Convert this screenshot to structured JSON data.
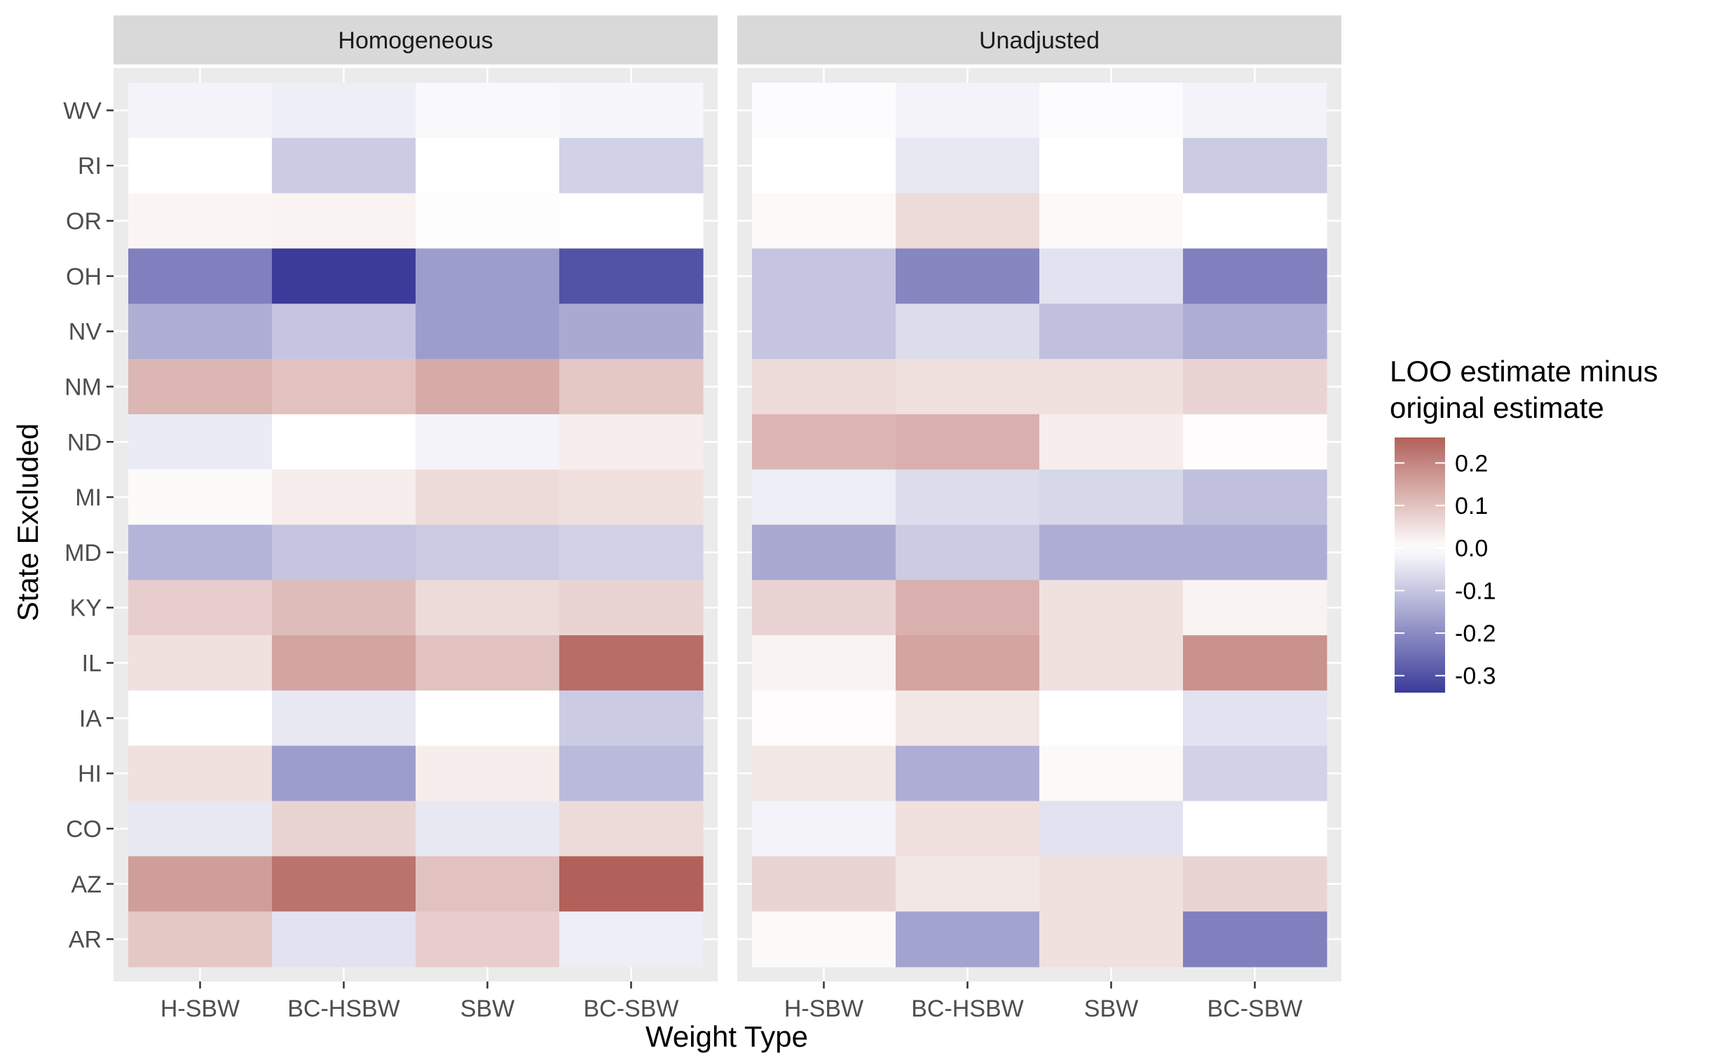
{
  "chart_data": {
    "type": "heatmap",
    "xlabel": "Weight Type",
    "ylabel": "State Excluded",
    "x_categories": [
      "H-SBW",
      "BC-HSBW",
      "SBW",
      "BC-SBW"
    ],
    "y_categories": [
      "WV",
      "RI",
      "OR",
      "OH",
      "NV",
      "NM",
      "ND",
      "MI",
      "MD",
      "KY",
      "IL",
      "IA",
      "HI",
      "CO",
      "AZ",
      "AR"
    ],
    "facets": [
      {
        "title": "Homogeneous",
        "values": [
          [
            -0.02,
            -0.03,
            -0.01,
            -0.015
          ],
          [
            0.0,
            -0.09,
            0.0,
            -0.08
          ],
          [
            0.015,
            0.02,
            0.003,
            0.0
          ],
          [
            -0.22,
            -0.34,
            -0.17,
            -0.3
          ],
          [
            -0.14,
            -0.1,
            -0.17,
            -0.15
          ],
          [
            0.12,
            0.1,
            0.14,
            0.09
          ],
          [
            -0.035,
            0.0,
            -0.02,
            0.03
          ],
          [
            0.008,
            0.03,
            0.06,
            0.05
          ],
          [
            -0.13,
            -0.1,
            -0.09,
            -0.08
          ],
          [
            0.08,
            0.11,
            0.06,
            0.07
          ],
          [
            0.05,
            0.15,
            0.1,
            0.24
          ],
          [
            0.0,
            -0.04,
            0.0,
            -0.09
          ],
          [
            0.05,
            -0.17,
            0.03,
            -0.12
          ],
          [
            -0.04,
            0.07,
            -0.04,
            0.06
          ],
          [
            0.16,
            0.23,
            0.1,
            0.26
          ],
          [
            0.09,
            -0.05,
            0.08,
            -0.03
          ]
        ]
      },
      {
        "title": "Unadjusted",
        "values": [
          [
            -0.005,
            -0.02,
            -0.005,
            -0.02
          ],
          [
            0.0,
            -0.04,
            0.0,
            -0.09
          ],
          [
            0.01,
            0.06,
            0.01,
            0.0
          ],
          [
            -0.1,
            -0.21,
            -0.05,
            -0.22
          ],
          [
            -0.1,
            -0.06,
            -0.11,
            -0.14
          ],
          [
            0.06,
            0.05,
            0.05,
            0.07
          ],
          [
            0.12,
            0.13,
            0.03,
            0.005
          ],
          [
            -0.03,
            -0.06,
            -0.07,
            -0.11
          ],
          [
            -0.15,
            -0.09,
            -0.14,
            -0.14
          ],
          [
            0.07,
            0.13,
            0.05,
            0.02
          ],
          [
            0.02,
            0.15,
            0.05,
            0.18
          ],
          [
            0.005,
            0.04,
            0.0,
            -0.05
          ],
          [
            0.04,
            -0.14,
            0.01,
            -0.08
          ],
          [
            -0.02,
            0.05,
            -0.05,
            0.0
          ],
          [
            0.07,
            0.04,
            0.05,
            0.07
          ],
          [
            0.01,
            -0.16,
            0.05,
            -0.22
          ]
        ]
      }
    ],
    "legend": {
      "title_lines": [
        "LOO estimate minus",
        " original estimate"
      ],
      "position": "right",
      "breaks": [
        0.2,
        0.1,
        0.0,
        -0.1,
        -0.2,
        -0.3
      ],
      "break_labels": [
        "0.2",
        "0.1",
        "0.0",
        "-0.1",
        "-0.2",
        "-0.3"
      ],
      "range": [
        -0.34,
        0.26
      ]
    },
    "colors": {
      "low": "#3b3b9a",
      "mid": "#ffffff",
      "high": "#b2615a",
      "panel_background": "#ebebeb",
      "strip_background": "#d9d9d9",
      "grid": "#ffffff"
    }
  }
}
